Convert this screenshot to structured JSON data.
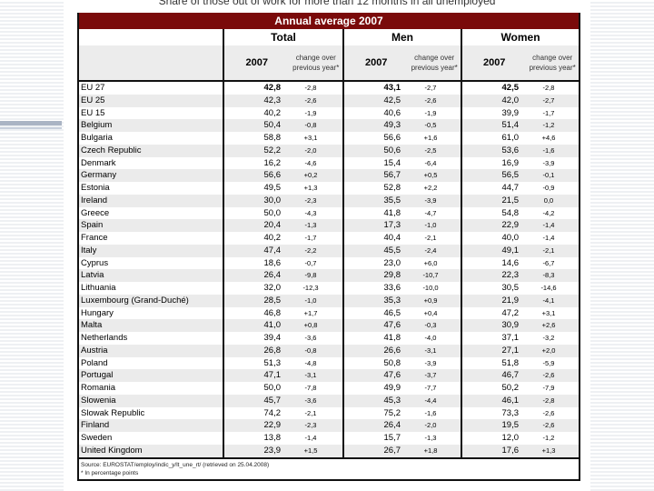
{
  "subtitle": "Share of those out of work for more than 12 months in all unemployed",
  "band_title": "Annual average 2007",
  "groups": [
    "Total",
    "Men",
    "Women"
  ],
  "year_label": "2007",
  "change_label": "change over previous year*",
  "rows": [
    {
      "country": "EU 27",
      "t": "42,8",
      "tc": "-2,8",
      "m": "43,1",
      "mc": "-2,7",
      "w": "42,5",
      "wc": "-2,8"
    },
    {
      "country": "EU 25",
      "t": "42,3",
      "tc": "-2,6",
      "m": "42,5",
      "mc": "-2,6",
      "w": "42,0",
      "wc": "-2,7"
    },
    {
      "country": "EU 15",
      "t": "40,2",
      "tc": "-1,9",
      "m": "40,6",
      "mc": "-1,9",
      "w": "39,9",
      "wc": "-1,7"
    },
    {
      "country": "Belgium",
      "t": "50,4",
      "tc": "-0,8",
      "m": "49,3",
      "mc": "-0,5",
      "w": "51,4",
      "wc": "-1,2"
    },
    {
      "country": "Bulgaria",
      "t": "58,8",
      "tc": "+3,1",
      "m": "56,6",
      "mc": "+1,6",
      "w": "61,0",
      "wc": "+4,6"
    },
    {
      "country": "Czech Republic",
      "t": "52,2",
      "tc": "-2,0",
      "m": "50,6",
      "mc": "-2,5",
      "w": "53,6",
      "wc": "-1,6"
    },
    {
      "country": "Denmark",
      "t": "16,2",
      "tc": "-4,6",
      "m": "15,4",
      "mc": "-6,4",
      "w": "16,9",
      "wc": "-3,9"
    },
    {
      "country": "Germany",
      "t": "56,6",
      "tc": "+0,2",
      "m": "56,7",
      "mc": "+0,5",
      "w": "56,5",
      "wc": "-0,1"
    },
    {
      "country": "Estonia",
      "t": "49,5",
      "tc": "+1,3",
      "m": "52,8",
      "mc": "+2,2",
      "w": "44,7",
      "wc": "-0,9"
    },
    {
      "country": "Ireland",
      "t": "30,0",
      "tc": "-2,3",
      "m": "35,5",
      "mc": "-3,9",
      "w": "21,5",
      "wc": "0,0"
    },
    {
      "country": "Greece",
      "t": "50,0",
      "tc": "-4,3",
      "m": "41,8",
      "mc": "-4,7",
      "w": "54,8",
      "wc": "-4,2"
    },
    {
      "country": "Spain",
      "t": "20,4",
      "tc": "-1,3",
      "m": "17,3",
      "mc": "-1,0",
      "w": "22,9",
      "wc": "-1,4"
    },
    {
      "country": "France",
      "t": "40,2",
      "tc": "-1,7",
      "m": "40,4",
      "mc": "-2,1",
      "w": "40,0",
      "wc": "-1,4"
    },
    {
      "country": "Italy",
      "t": "47,4",
      "tc": "-2,2",
      "m": "45,5",
      "mc": "-2,4",
      "w": "49,1",
      "wc": "-2,1"
    },
    {
      "country": "Cyprus",
      "t": "18,6",
      "tc": "-0,7",
      "m": "23,0",
      "mc": "+6,0",
      "w": "14,6",
      "wc": "-6,7"
    },
    {
      "country": "Latvia",
      "t": "26,4",
      "tc": "-9,8",
      "m": "29,8",
      "mc": "-10,7",
      "w": "22,3",
      "wc": "-8,3"
    },
    {
      "country": "Lithuania",
      "t": "32,0",
      "tc": "-12,3",
      "m": "33,6",
      "mc": "-10,0",
      "w": "30,5",
      "wc": "-14,6"
    },
    {
      "country": "Luxembourg (Grand-Duché)",
      "t": "28,5",
      "tc": "-1,0",
      "m": "35,3",
      "mc": "+0,9",
      "w": "21,9",
      "wc": "-4,1"
    },
    {
      "country": "Hungary",
      "t": "46,8",
      "tc": "+1,7",
      "m": "46,5",
      "mc": "+0,4",
      "w": "47,2",
      "wc": "+3,1"
    },
    {
      "country": "Malta",
      "t": "41,0",
      "tc": "+0,8",
      "m": "47,6",
      "mc": "-0,3",
      "w": "30,9",
      "wc": "+2,6"
    },
    {
      "country": "Netherlands",
      "t": "39,4",
      "tc": "-3,6",
      "m": "41,8",
      "mc": "-4,0",
      "w": "37,1",
      "wc": "-3,2"
    },
    {
      "country": "Austria",
      "t": "26,8",
      "tc": "-0,8",
      "m": "26,6",
      "mc": "-3,1",
      "w": "27,1",
      "wc": "+2,0"
    },
    {
      "country": "Poland",
      "t": "51,3",
      "tc": "-4,8",
      "m": "50,8",
      "mc": "-3,9",
      "w": "51,8",
      "wc": "-5,9"
    },
    {
      "country": "Portugal",
      "t": "47,1",
      "tc": "-3,1",
      "m": "47,6",
      "mc": "-3,7",
      "w": "46,7",
      "wc": "-2,6"
    },
    {
      "country": "Romania",
      "t": "50,0",
      "tc": "-7,8",
      "m": "49,9",
      "mc": "-7,7",
      "w": "50,2",
      "wc": "-7,9"
    },
    {
      "country": "Slowenia",
      "t": "45,7",
      "tc": "-3,6",
      "m": "45,3",
      "mc": "-4,4",
      "w": "46,1",
      "wc": "-2,8"
    },
    {
      "country": "Slowak Republic",
      "t": "74,2",
      "tc": "-2,1",
      "m": "75,2",
      "mc": "-1,6",
      "w": "73,3",
      "wc": "-2,6"
    },
    {
      "country": "Finland",
      "t": "22,9",
      "tc": "-2,3",
      "m": "26,4",
      "mc": "-2,0",
      "w": "19,5",
      "wc": "-2,6"
    },
    {
      "country": "Sweden",
      "t": "13,8",
      "tc": "-1,4",
      "m": "15,7",
      "mc": "-1,3",
      "w": "12,0",
      "wc": "-1,2"
    },
    {
      "country": "United Kingdom",
      "t": "23,9",
      "tc": "+1,5",
      "m": "26,7",
      "mc": "+1,8",
      "w": "17,6",
      "wc": "+1,3"
    }
  ],
  "source": "Source: EUROSTAT/employ/indic_y/lt_une_rt/ (retrieved on 25.04.2008)",
  "footnote": "* In percentage points",
  "colors": {
    "band": "#7a0a0a",
    "alt_row": "#ebebeb"
  }
}
